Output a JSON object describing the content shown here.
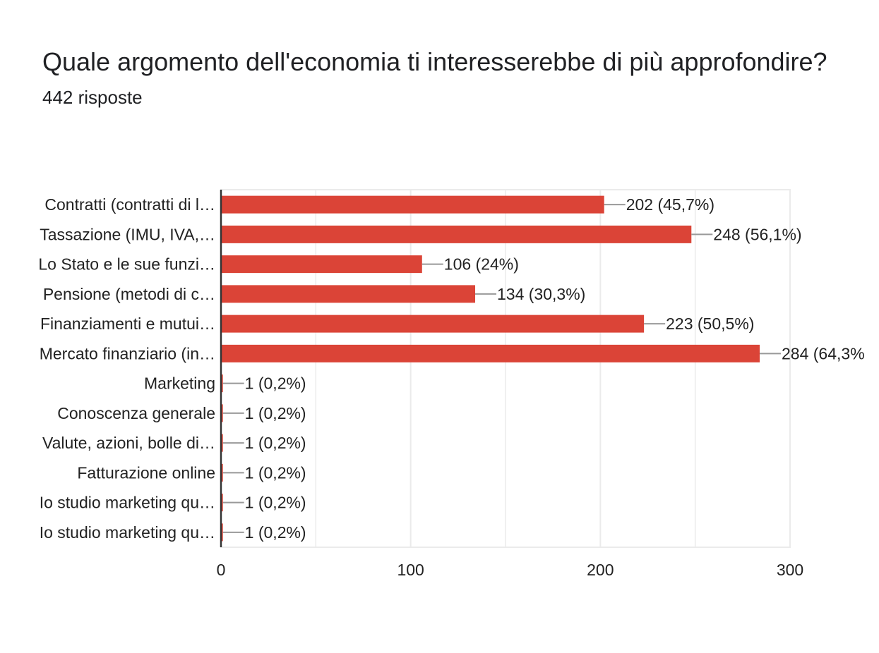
{
  "header": {
    "title": "Quale argomento dell'economia ti interesserebbe di più approfondire?",
    "subtitle": "442 risposte"
  },
  "colors": {
    "bar": "#db4437",
    "axis": "#333333",
    "grid": "#ebebeb",
    "leader": "#999999"
  },
  "chart_data": {
    "type": "bar",
    "orientation": "horizontal",
    "categories": [
      "Contratti (contratti di l…",
      "Tassazione (IMU, IVA,…",
      "Lo Stato e le sue funzi…",
      "Pensione (metodi di c…",
      "Finanziamenti e mutui…",
      "Mercato finanziario (in…",
      "Marketing",
      "Conoscenza generale",
      "Valute, azioni, bolle di…",
      "Fatturazione online",
      "Io studio marketing qu…",
      "Io studio marketing qu…"
    ],
    "values": [
      202,
      248,
      106,
      134,
      223,
      284,
      1,
      1,
      1,
      1,
      1,
      1
    ],
    "value_labels": [
      "202 (45,7%)",
      "248 (56,1%)",
      "106 (24%)",
      "134 (30,3%)",
      "223 (50,5%)",
      "284 (64,3%",
      "1 (0,2%)",
      "1 (0,2%)",
      "1 (0,2%)",
      "1 (0,2%)",
      "1 (0,2%)",
      "1 (0,2%)"
    ],
    "x_ticks": [
      "0",
      "100",
      "200",
      "300"
    ],
    "xlim": [
      0,
      300
    ],
    "grid": true,
    "legend": "none"
  }
}
